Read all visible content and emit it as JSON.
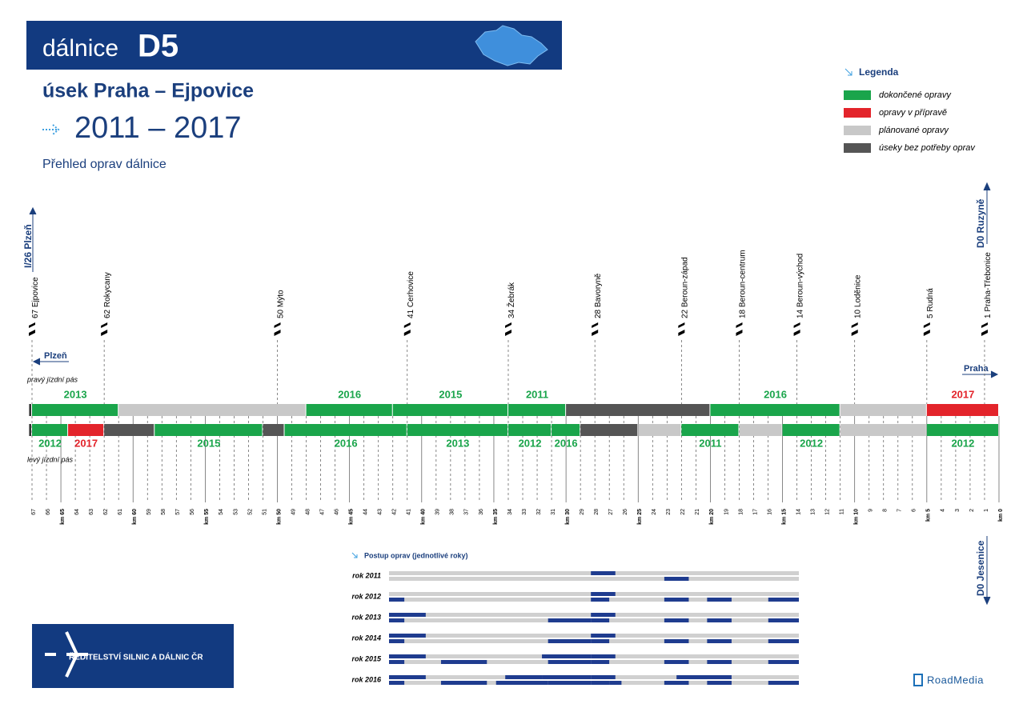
{
  "header": {
    "road_prefix": "dálnice",
    "road": "D5",
    "section": "úsek Praha – Ejpovice",
    "period": "2011 – 2017",
    "subtitle": "Přehled oprav dálnice"
  },
  "legend": {
    "title": "Legenda",
    "items": [
      {
        "label": "dokončené opravy",
        "color": "#1aa54b"
      },
      {
        "label": "opravy v přípravě",
        "color": "#e3242b"
      },
      {
        "label": "plánované opravy",
        "color": "#c8c8c8"
      },
      {
        "label": "úseky bez potřeby oprav",
        "color": "#555555"
      }
    ]
  },
  "directions": {
    "west_road": "I/26 Plzeň",
    "east_north": "D0 Ruzyně",
    "east_south": "D0 Jesenice",
    "to_west": "Plzeň",
    "to_east": "Praha"
  },
  "carriageways": [
    {
      "label": "pravý jízdní pás",
      "segments": [
        {
          "from": 67.2,
          "to": 67,
          "color": "#333333"
        },
        {
          "from": 67,
          "to": 61,
          "color": "#1aa54b",
          "year": 2013
        },
        {
          "from": 61,
          "to": 48,
          "color": "#c8c8c8"
        },
        {
          "from": 48,
          "to": 42,
          "color": "#1aa54b",
          "year": 2016
        },
        {
          "from": 42,
          "to": 34,
          "color": "#1aa54b",
          "year": 2015
        },
        {
          "from": 34,
          "to": 30,
          "color": "#1aa54b",
          "year": 2011
        },
        {
          "from": 30,
          "to": 20,
          "color": "#555555"
        },
        {
          "from": 20,
          "to": 11,
          "color": "#1aa54b",
          "year": 2016
        },
        {
          "from": 11,
          "to": 5,
          "color": "#c8c8c8"
        },
        {
          "from": 5,
          "to": 0,
          "color": "#e3242b",
          "year": 2017
        }
      ]
    },
    {
      "label": "levý jízdní pás",
      "segments": [
        {
          "from": 67.2,
          "to": 67,
          "color": "#333333"
        },
        {
          "from": 67,
          "to": 64.5,
          "color": "#1aa54b",
          "year": 2012
        },
        {
          "from": 64.5,
          "to": 62,
          "color": "#e3242b",
          "year": 2017
        },
        {
          "from": 62,
          "to": 58.5,
          "color": "#555555"
        },
        {
          "from": 58.5,
          "to": 51,
          "color": "#1aa54b",
          "year": 2015
        },
        {
          "from": 51,
          "to": 49.5,
          "color": "#555555"
        },
        {
          "from": 49.5,
          "to": 41,
          "color": "#1aa54b",
          "year": 2016
        },
        {
          "from": 41,
          "to": 34,
          "color": "#1aa54b",
          "year": 2013
        },
        {
          "from": 34,
          "to": 31,
          "color": "#1aa54b",
          "year": 2012
        },
        {
          "from": 31,
          "to": 29,
          "color": "#1aa54b",
          "year": 2016
        },
        {
          "from": 29,
          "to": 25,
          "color": "#555555"
        },
        {
          "from": 25,
          "to": 22,
          "color": "#c8c8c8"
        },
        {
          "from": 22,
          "to": 18,
          "color": "#1aa54b",
          "year": 2011
        },
        {
          "from": 18,
          "to": 15,
          "color": "#c8c8c8"
        },
        {
          "from": 15,
          "to": 11,
          "color": "#1aa54b",
          "year": 2012
        },
        {
          "from": 11,
          "to": 5,
          "color": "#c8c8c8"
        },
        {
          "from": 5,
          "to": 0,
          "color": "#1aa54b",
          "year": 2012
        }
      ]
    }
  ],
  "exits": [
    {
      "km": 67,
      "name": "Ejpovice"
    },
    {
      "km": 62,
      "name": "Rokycany"
    },
    {
      "km": 50,
      "name": "Mýto"
    },
    {
      "km": 41,
      "name": "Cerhovice"
    },
    {
      "km": 34,
      "name": "Žebrák"
    },
    {
      "km": 28,
      "name": "Bavoryně"
    },
    {
      "km": 22,
      "name": "Beroun-západ"
    },
    {
      "km": 18,
      "name": "Beroun-centrum"
    },
    {
      "km": 14,
      "name": "Beroun-východ"
    },
    {
      "km": 10,
      "name": "Loděnice"
    },
    {
      "km": 5,
      "name": "Rudná"
    },
    {
      "km": 1,
      "name": "Praha-Třebonice"
    }
  ],
  "km_axis": {
    "xlim": [
      67,
      0
    ],
    "ticks": [
      67,
      66,
      {
        "value": 65,
        "label": "km 65"
      },
      64,
      63,
      62,
      61,
      {
        "value": 60,
        "label": "km 60"
      },
      59,
      58,
      57,
      56,
      {
        "value": 55,
        "label": "km 55"
      },
      54,
      53,
      52,
      51,
      {
        "value": 50,
        "label": "km 50"
      },
      49,
      48,
      47,
      46,
      {
        "value": 45,
        "label": "km 45"
      },
      44,
      43,
      42,
      41,
      {
        "value": 40,
        "label": "km 40"
      },
      39,
      38,
      37,
      36,
      {
        "value": 35,
        "label": "km 35"
      },
      34,
      33,
      32,
      31,
      {
        "value": 30,
        "label": "km 30"
      },
      29,
      28,
      27,
      26,
      {
        "value": 25,
        "label": "km 25"
      },
      24,
      23,
      22,
      21,
      {
        "value": 20,
        "label": "km 20"
      },
      19,
      18,
      17,
      16,
      {
        "value": 15,
        "label": "km 15"
      },
      14,
      13,
      12,
      11,
      {
        "value": 10,
        "label": "km 10"
      },
      9,
      8,
      7,
      6,
      {
        "value": 5,
        "label": "km 5"
      },
      4,
      3,
      2,
      1,
      {
        "value": 0,
        "label": "km 0"
      }
    ]
  },
  "progress": {
    "title": "Postup oprav (jednotlivé roky)",
    "rows": [
      {
        "label": "rok 2011",
        "year": 2011
      },
      {
        "label": "rok 2012",
        "year": 2012
      },
      {
        "label": "rok 2013",
        "year": 2013
      },
      {
        "label": "rok 2014",
        "year": 2014
      },
      {
        "label": "rok 2015",
        "year": 2015
      },
      {
        "label": "rok 2016",
        "year": 2016
      }
    ]
  },
  "footer": {
    "agency": "ŘEDITELSTVÍ SILNIC A DÁLNIC ČR",
    "brand": "RoadMedia"
  }
}
